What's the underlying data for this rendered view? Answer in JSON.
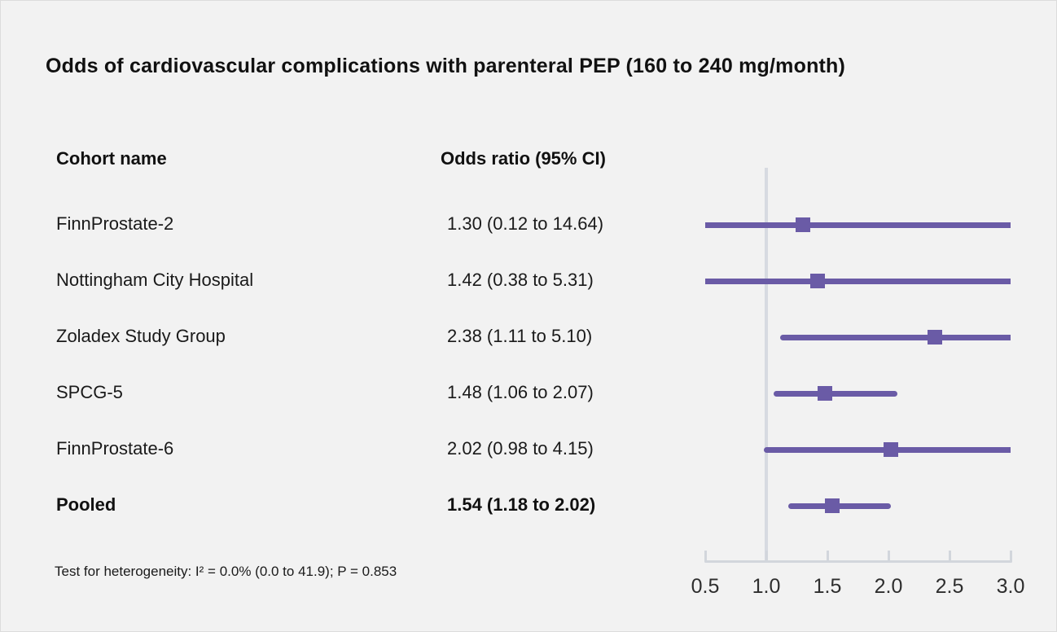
{
  "columns": {
    "cohort_header": "Cohort name",
    "odds_header": "Odds ratio (95% CI)"
  },
  "footer": {
    "heterogeneity_text": "Test for heterogeneity: I² = 0.0% (0.0 to 41.9); P = 0.853"
  },
  "colors": {
    "background": "#f2f2f2",
    "marker": "#6a5ba6",
    "reference_line": "#d7dae1",
    "axis_line": "#d2d6dc",
    "text": "#1a1a1a"
  },
  "chart_data": {
    "type": "forest",
    "title": "Odds of cardiovascular complications with parenteral PEP (160 to 240 mg/month)",
    "xlim": [
      0.5,
      3.0
    ],
    "reference_value": 1.0,
    "grid": "off",
    "axis_ticks": [
      {
        "value": 0.5,
        "label": "0.5"
      },
      {
        "value": 1.0,
        "label": "1.0"
      },
      {
        "value": 1.5,
        "label": "1.5"
      },
      {
        "value": 2.0,
        "label": "2.0"
      },
      {
        "value": 2.5,
        "label": "2.5"
      },
      {
        "value": 3.0,
        "label": "3.0"
      }
    ],
    "rows": [
      {
        "name": "FinnProstate-2",
        "or": 1.3,
        "ci_low": 0.12,
        "ci_high": 14.64,
        "or_label": "1.30 (0.12 to 14.64)",
        "bold": false
      },
      {
        "name": "Nottingham City Hospital",
        "or": 1.42,
        "ci_low": 0.38,
        "ci_high": 5.31,
        "or_label": "1.42 (0.38 to 5.31)",
        "bold": false
      },
      {
        "name": "Zoladex Study Group",
        "or": 2.38,
        "ci_low": 1.11,
        "ci_high": 5.1,
        "or_label": "2.38 (1.11 to 5.10)",
        "bold": false
      },
      {
        "name": "SPCG-5",
        "or": 1.48,
        "ci_low": 1.06,
        "ci_high": 2.07,
        "or_label": "1.48 (1.06 to 2.07)",
        "bold": false
      },
      {
        "name": "FinnProstate-6",
        "or": 2.02,
        "ci_low": 0.98,
        "ci_high": 4.15,
        "or_label": "2.02 (0.98 to 4.15)",
        "bold": false
      },
      {
        "name": "Pooled",
        "or": 1.54,
        "ci_low": 1.18,
        "ci_high": 2.02,
        "or_label": "1.54 (1.18 to 2.02)",
        "bold": true
      }
    ]
  }
}
